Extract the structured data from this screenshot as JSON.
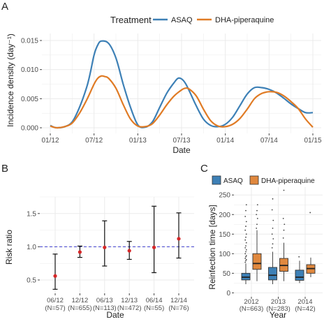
{
  "panel_labels": {
    "a": "A",
    "b": "B",
    "c": "C"
  },
  "colors": {
    "asaq": "#3d80b6",
    "dha": "#e07b25",
    "ci_point": "#d62728",
    "ref_line": "#3d3dcf",
    "panel_bg": "#ffffff",
    "grid": "#ebebeb"
  },
  "chart_data": [
    {
      "type": "line",
      "title": "",
      "xlabel": "Date",
      "ylabel": "Incidence density (day⁻¹)",
      "legend": {
        "title": "Treatment",
        "position": "top",
        "entries": [
          "ASAQ",
          "DHA-piperaquine"
        ]
      },
      "x_ticks": [
        "01/12",
        "07/12",
        "01/13",
        "07/13",
        "01/14",
        "07/14",
        "01/15"
      ],
      "y_ticks": [
        "0.000",
        "0.005",
        "0.010",
        "0.015"
      ],
      "ylim": [
        0,
        0.0155
      ],
      "grid": true,
      "x_unit": "months since 2012-01",
      "series": [
        {
          "name": "ASAQ",
          "x": [
            0.0,
            0.5,
            1.0,
            2.0,
            3.0,
            4.0,
            5.0,
            5.5,
            6.0,
            6.5,
            7.0,
            8.0,
            9.0,
            10.0,
            11.0,
            12.0,
            13.0,
            14.0,
            15.0,
            16.0,
            17.0,
            17.5,
            18.0,
            18.5,
            19.0,
            20.0,
            21.0,
            22.0,
            23.0,
            24.0,
            25.0,
            26.0,
            27.0,
            28.0,
            29.0,
            30.0,
            31.0,
            32.0,
            33.0,
            34.0,
            35.0,
            36.0
          ],
          "y": [
            0.0004,
            0.0001,
            0.0,
            0.0002,
            0.001,
            0.0035,
            0.007,
            0.0095,
            0.0125,
            0.0142,
            0.0149,
            0.0145,
            0.012,
            0.0075,
            0.0035,
            0.0005,
            0.0001,
            0.001,
            0.0035,
            0.006,
            0.0078,
            0.0085,
            0.0084,
            0.0077,
            0.0065,
            0.0038,
            0.0015,
            0.0004,
            0.0002,
            0.0006,
            0.0018,
            0.0038,
            0.0058,
            0.0069,
            0.0069,
            0.0066,
            0.006,
            0.0051,
            0.0041,
            0.0033,
            0.0026,
            0.0026
          ]
        },
        {
          "name": "DHA-piperaquine",
          "x": [
            0.0,
            0.5,
            1.0,
            2.0,
            3.0,
            4.0,
            5.0,
            6.0,
            6.5,
            7.0,
            7.5,
            8.0,
            9.0,
            10.0,
            11.0,
            12.0,
            13.0,
            14.0,
            15.0,
            16.0,
            17.0,
            18.0,
            18.5,
            19.0,
            20.0,
            21.0,
            22.0,
            23.0,
            24.0,
            25.0,
            26.0,
            27.0,
            28.0,
            29.0,
            30.0,
            31.0,
            32.0,
            33.0,
            34.0,
            35.0,
            36.0
          ],
          "y": [
            0.0003,
            0.0001,
            0.0,
            0.0002,
            0.0008,
            0.0025,
            0.0048,
            0.0075,
            0.0085,
            0.0089,
            0.0088,
            0.0085,
            0.0068,
            0.004,
            0.0015,
            0.0003,
            0.0002,
            0.0007,
            0.0022,
            0.004,
            0.0055,
            0.0065,
            0.0068,
            0.0067,
            0.0055,
            0.0032,
            0.0012,
            0.0003,
            0.0002,
            0.0006,
            0.0016,
            0.0032,
            0.005,
            0.0059,
            0.0062,
            0.0061,
            0.0055,
            0.0045,
            0.0033,
            0.0015,
            0.0001
          ]
        }
      ]
    },
    {
      "type": "scatter",
      "subtype": "point-with-error-bars",
      "title": "",
      "xlabel": "Date",
      "ylabel": "Risk ratio",
      "categories": [
        "06/12",
        "12/12",
        "06/13",
        "12/13",
        "06/14",
        "12/14"
      ],
      "category_n": [
        "(N=57)",
        "(N=655)",
        "(N=113)",
        "(N=472)",
        "(N=55)",
        "(N=76)"
      ],
      "values": [
        0.56,
        0.92,
        0.99,
        0.94,
        0.99,
        1.12
      ],
      "ci_low": [
        0.36,
        0.84,
        0.71,
        0.81,
        0.61,
        0.83
      ],
      "ci_high": [
        0.89,
        1.01,
        1.39,
        1.08,
        1.61,
        1.51
      ],
      "reference_line": 1.0,
      "y_ticks": [
        "0.5",
        "1.0",
        "1.5"
      ],
      "ylim": [
        0.3,
        1.75
      ],
      "grid": true
    },
    {
      "type": "box",
      "title": "",
      "xlabel": "Year",
      "ylabel": "Reinfection time [days]",
      "legend": {
        "position": "top",
        "entries": [
          "ASAQ",
          "DHA-piperaquine"
        ]
      },
      "categories": [
        "2012",
        "2013",
        "2014"
      ],
      "category_n": [
        "(N=663)",
        "(N=283)",
        "(N=42)"
      ],
      "y_ticks": [
        "0",
        "50",
        "100",
        "150",
        "200",
        "250"
      ],
      "ylim": [
        -10,
        270
      ],
      "grid": true,
      "series": [
        {
          "name": "ASAQ",
          "boxes": [
            {
              "min": 22,
              "q1": 33,
              "median": 40,
              "q3": 50,
              "max": 75,
              "outliers": [
                78,
                82,
                85,
                88,
                92,
                95,
                100,
                105,
                110,
                115,
                120,
                128,
                135,
                142,
                150,
                160,
                170,
                182,
                195,
                210,
                225
              ]
            },
            {
              "min": 22,
              "q1": 33,
              "median": 45,
              "q3": 65,
              "max": 105,
              "outliers": [
                115,
                125,
                138,
                150,
                165,
                185,
                212,
                240
              ]
            },
            {
              "min": 25,
              "q1": 32,
              "median": 40,
              "q3": 58,
              "max": 82,
              "outliers": [
                92
              ]
            }
          ]
        },
        {
          "name": "DHA-piperaquine",
          "boxes": [
            {
              "min": 30,
              "q1": 60,
              "median": 75,
              "q3": 100,
              "max": 160,
              "outliers": [
                165,
                175,
                190,
                200,
                210,
                225
              ]
            },
            {
              "min": 30,
              "q1": 55,
              "median": 70,
              "q3": 88,
              "max": 128,
              "outliers": [
                140,
                160,
                175,
                190,
                262
              ]
            },
            {
              "min": 40,
              "q1": 50,
              "median": 62,
              "q3": 72,
              "max": 90,
              "outliers": [
                205
              ]
            }
          ]
        }
      ]
    }
  ]
}
